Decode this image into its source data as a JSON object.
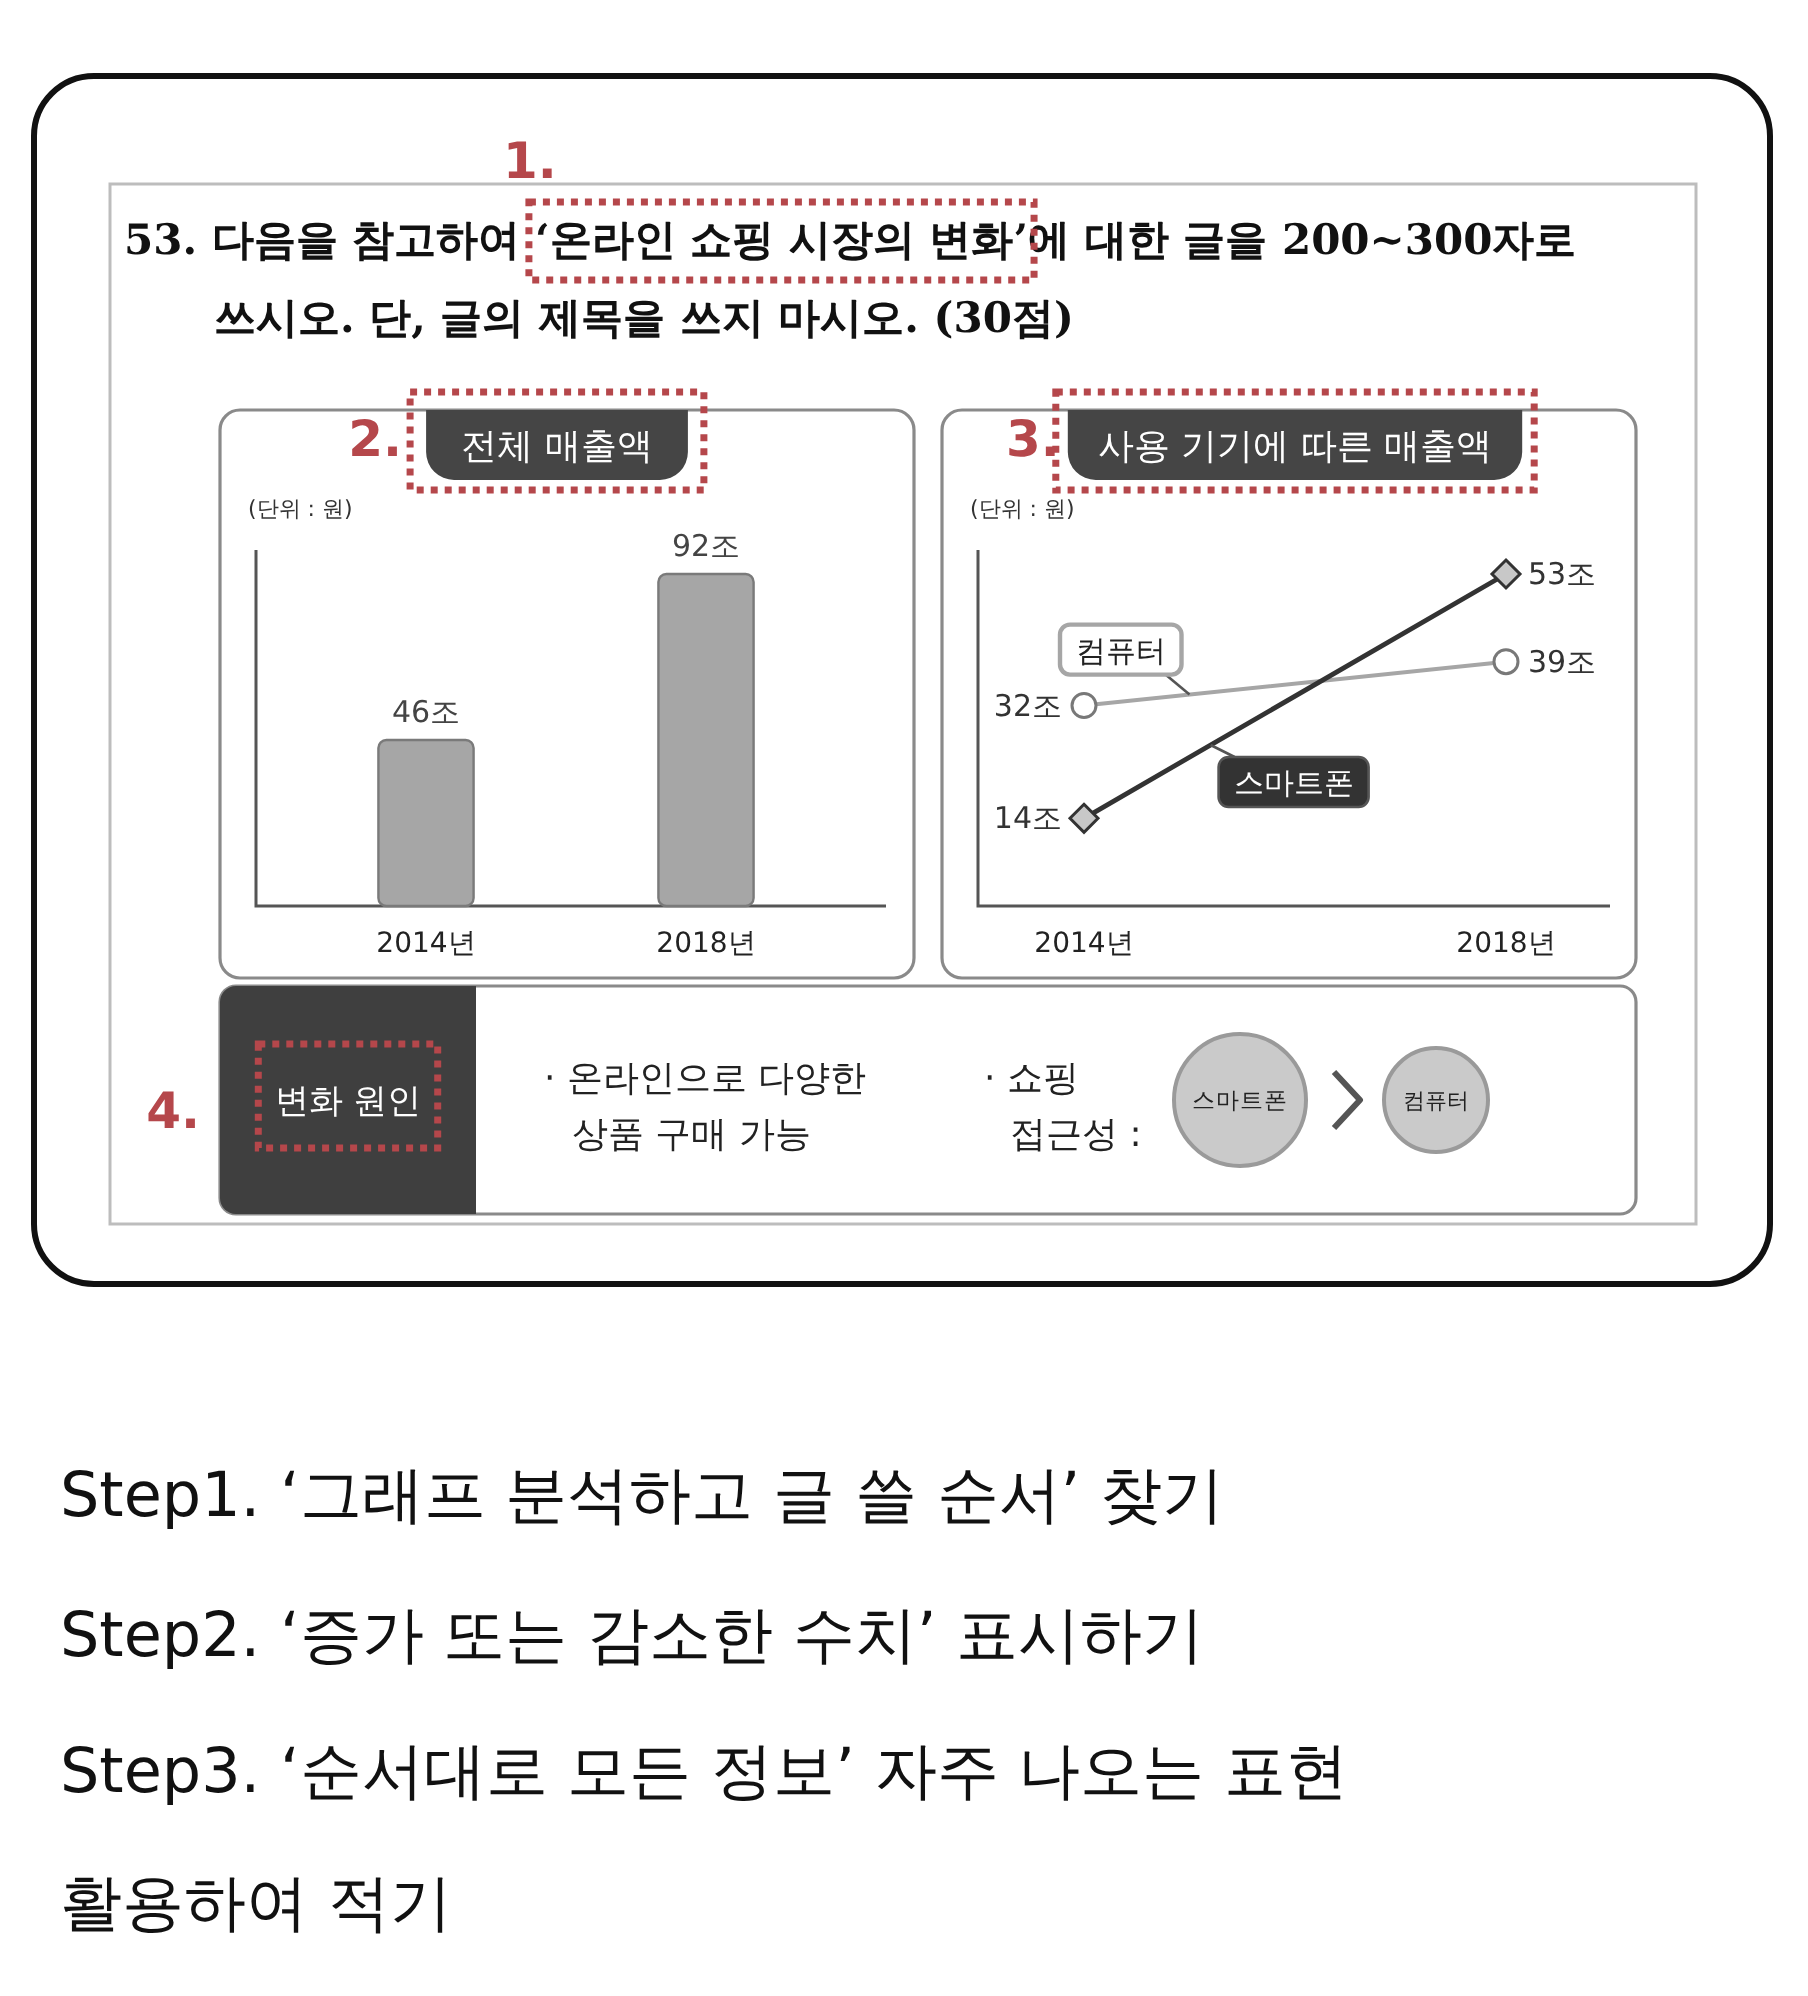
{
  "chart_data": [
    {
      "type": "bar",
      "title": "전체 매출액",
      "ylabel": "(단위 : 원)",
      "categories": [
        "2014년",
        "2018년"
      ],
      "values": [
        46,
        92
      ],
      "value_labels": [
        "46조",
        "92조"
      ],
      "color": "#a6a6a6",
      "annotations": [
        "1.",
        "53. 다음을 참고하여 ‘온라인 쇼핑 시장의 변화’에 대한 글을 200~300자로",
        "쓰시오. 단, 글의 제목을 쓰지 마시오. (30점)",
        "2."
      ]
    },
    {
      "type": "line",
      "title": "사용 기기에 따른 매출액",
      "ylabel": "(단위 : 원)",
      "categories": [
        "2014년",
        "2018년"
      ],
      "series": [
        {
          "name": "컴퓨터",
          "color": "#a6a6a6",
          "marker": "circle",
          "values": [
            32,
            39
          ],
          "value_labels": [
            "32조",
            "39조"
          ]
        },
        {
          "name": "스마트폰",
          "color": "#333333",
          "marker": "diamond",
          "values": [
            14,
            53
          ],
          "value_labels": [
            "14조",
            "53조"
          ]
        }
      ],
      "annotations": [
        "3."
      ]
    },
    {
      "type": "other",
      "annotations": [
        "4.",
        "변화 원인",
        "· 온라인으로 다양한",
        "상품 구매 가능",
        "· 쇼핑",
        "접근성 :",
        "스마트폰",
        "컴퓨터",
        "Step1. ‘그래프 분석하고 글 쓸 순서’ 찾기",
        "Step2. ‘증가 또는 감소한 수치’ 표시하기",
        "Step3. ‘순서대로 모든 정보’ 자주 나오는 표현",
        "활용하여 적기"
      ]
    }
  ]
}
